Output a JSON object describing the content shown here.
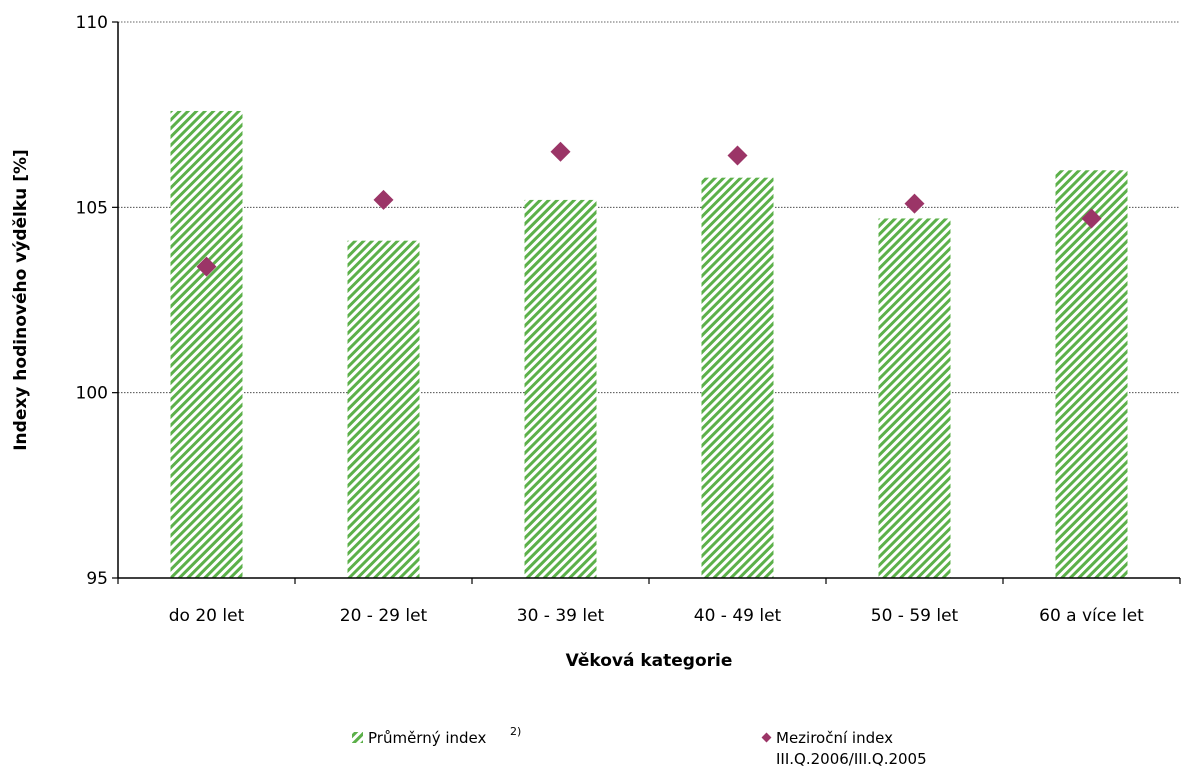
{
  "chart_data": {
    "type": "bar",
    "categories": [
      "do 20 let",
      "20 - 29 let",
      "30 - 39 let",
      "40 - 49 let",
      "50 - 59 let",
      "60 a více let"
    ],
    "series": [
      {
        "name": "Průměrný index",
        "name_superscript": "2)",
        "kind": "bar",
        "pattern": "green diagonal hatch",
        "color": "#5cb04a",
        "values": [
          107.6,
          104.1,
          105.2,
          105.8,
          104.7,
          106.0
        ]
      },
      {
        "name": "Meziroční index",
        "name_line2": "III.Q.2006/III.Q.2005",
        "kind": "scatter",
        "marker": "diamond",
        "color": "#9b3567",
        "values": [
          103.4,
          105.2,
          106.5,
          106.4,
          105.1,
          104.7
        ]
      }
    ],
    "xlabel": "Věková kategorie",
    "ylabel": "Indexy hodinového výdělku [%]",
    "ylim": [
      95,
      110
    ],
    "yticks": [
      95,
      100,
      105,
      110
    ],
    "grid": "horizontal dotted",
    "legend": "bottom"
  }
}
